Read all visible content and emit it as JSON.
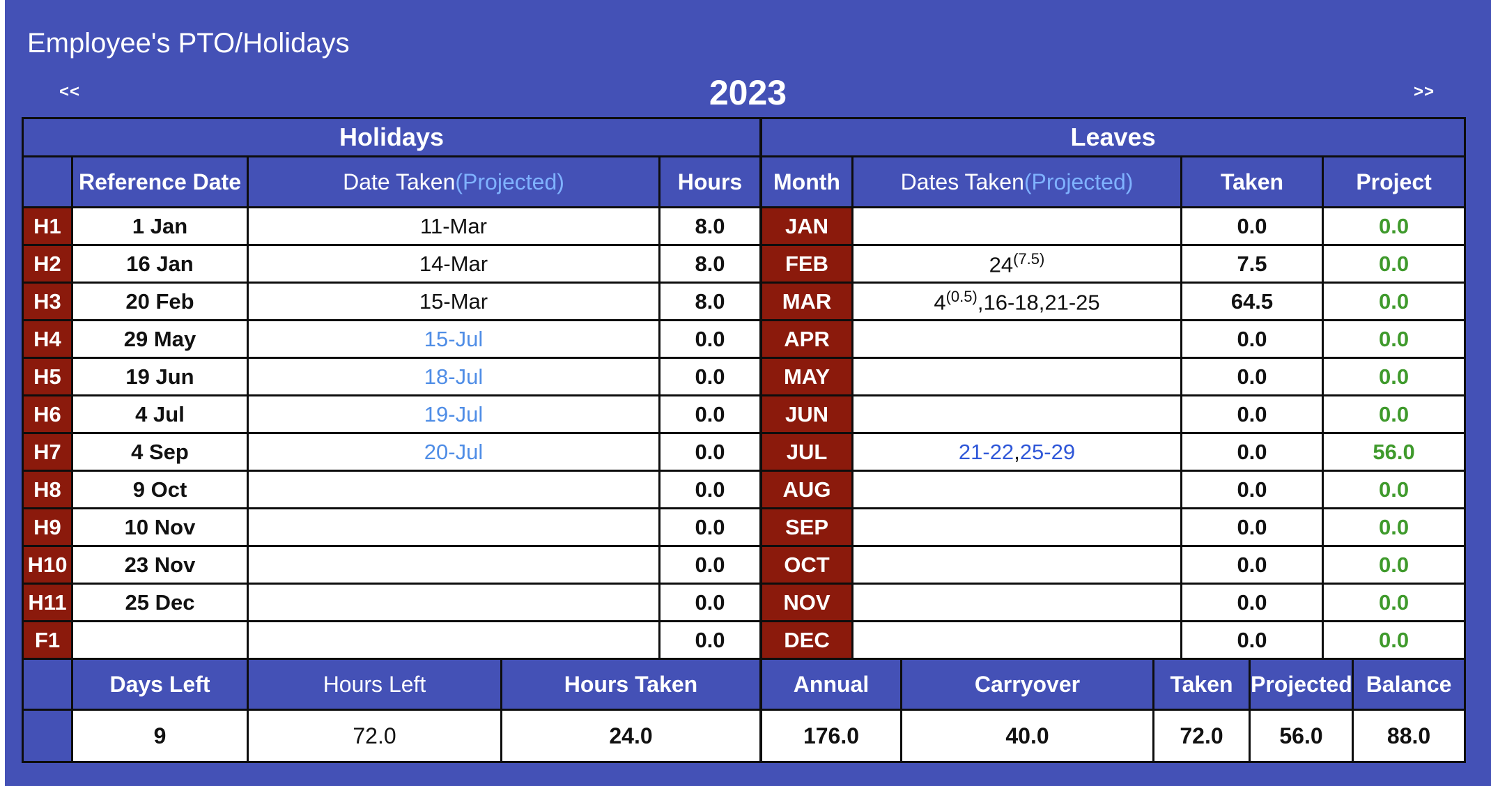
{
  "page": {
    "title": "Employee's PTO/Holidays",
    "year": "2023",
    "prev": "<<",
    "next": ">>"
  },
  "holidays": {
    "title": "Holidays",
    "headers": {
      "ref": "Reference Date",
      "date_taken": "Date Taken",
      "projected": "(Projected)",
      "hours": "Hours"
    },
    "rows": [
      {
        "tag": "H1",
        "ref": "1 Jan",
        "date": "11-Mar",
        "projected": false,
        "hours": "8.0"
      },
      {
        "tag": "H2",
        "ref": "16 Jan",
        "date": "14-Mar",
        "projected": false,
        "hours": "8.0"
      },
      {
        "tag": "H3",
        "ref": "20 Feb",
        "date": "15-Mar",
        "projected": false,
        "hours": "8.0"
      },
      {
        "tag": "H4",
        "ref": "29 May",
        "date": "15-Jul",
        "projected": true,
        "hours": "0.0"
      },
      {
        "tag": "H5",
        "ref": "19 Jun",
        "date": "18-Jul",
        "projected": true,
        "hours": "0.0"
      },
      {
        "tag": "H6",
        "ref": "4 Jul",
        "date": "19-Jul",
        "projected": true,
        "hours": "0.0"
      },
      {
        "tag": "H7",
        "ref": "4 Sep",
        "date": "20-Jul",
        "projected": true,
        "hours": "0.0"
      },
      {
        "tag": "H8",
        "ref": "9 Oct",
        "date": "",
        "projected": false,
        "hours": "0.0"
      },
      {
        "tag": "H9",
        "ref": "10 Nov",
        "date": "",
        "projected": false,
        "hours": "0.0"
      },
      {
        "tag": "H10",
        "ref": "23 Nov",
        "date": "",
        "projected": false,
        "hours": "0.0"
      },
      {
        "tag": "H11",
        "ref": "25 Dec",
        "date": "",
        "projected": false,
        "hours": "0.0"
      },
      {
        "tag": "F1",
        "ref": "",
        "date": "",
        "projected": false,
        "hours": "0.0"
      }
    ],
    "summary": {
      "labels": {
        "days_left": "Days Left",
        "hours_left": "Hours Left",
        "hours_taken": "Hours Taken"
      },
      "values": {
        "days_left": "9",
        "hours_left": "72.0",
        "hours_taken": "24.0"
      }
    }
  },
  "leaves": {
    "title": "Leaves",
    "headers": {
      "month": "Month",
      "dates_taken": "Dates Taken",
      "projected": "(Projected)",
      "taken": "Taken",
      "project": "Project"
    },
    "rows": [
      {
        "month": "JAN",
        "dates": "",
        "sup": "",
        "rest": "",
        "taken": "0.0",
        "project": "0.0"
      },
      {
        "month": "FEB",
        "dates": "24",
        "sup": "(7.5)",
        "rest": "",
        "taken": "7.5",
        "project": "0.0"
      },
      {
        "month": "MAR",
        "dates": "4",
        "sup": "(0.5)",
        "rest": ",16-18,21-25",
        "taken": "64.5",
        "project": "0.0"
      },
      {
        "month": "APR",
        "dates": "",
        "sup": "",
        "rest": "",
        "taken": "0.0",
        "project": "0.0"
      },
      {
        "month": "MAY",
        "dates": "",
        "sup": "",
        "rest": "",
        "taken": "0.0",
        "project": "0.0"
      },
      {
        "month": "JUN",
        "dates": "",
        "sup": "",
        "rest": "",
        "taken": "0.0",
        "project": "0.0"
      },
      {
        "month": "JUL",
        "dates": "",
        "sup": "",
        "rest": "",
        "proj_a": "21-22",
        "sep": ",",
        "proj_b": "25-29",
        "taken": "0.0",
        "project": "56.0"
      },
      {
        "month": "AUG",
        "dates": "",
        "sup": "",
        "rest": "",
        "taken": "0.0",
        "project": "0.0"
      },
      {
        "month": "SEP",
        "dates": "",
        "sup": "",
        "rest": "",
        "taken": "0.0",
        "project": "0.0"
      },
      {
        "month": "OCT",
        "dates": "",
        "sup": "",
        "rest": "",
        "taken": "0.0",
        "project": "0.0"
      },
      {
        "month": "NOV",
        "dates": "",
        "sup": "",
        "rest": "",
        "taken": "0.0",
        "project": "0.0"
      },
      {
        "month": "DEC",
        "dates": "",
        "sup": "",
        "rest": "",
        "taken": "0.0",
        "project": "0.0"
      }
    ],
    "summary": {
      "labels": {
        "annual": "Annual",
        "carryover": "Carryover",
        "taken": "Taken",
        "projected": "Projected",
        "balance": "Balance"
      },
      "values": {
        "annual": "176.0",
        "carryover": "40.0",
        "taken": "72.0",
        "projected": "56.0",
        "balance": "88.0"
      }
    }
  },
  "colors": {
    "background": "#4451b6",
    "tag": "#8b1a0c",
    "projected_text": "#7fb2ff",
    "project_value": "#3f9a2c",
    "border": "#0d0d0d"
  }
}
